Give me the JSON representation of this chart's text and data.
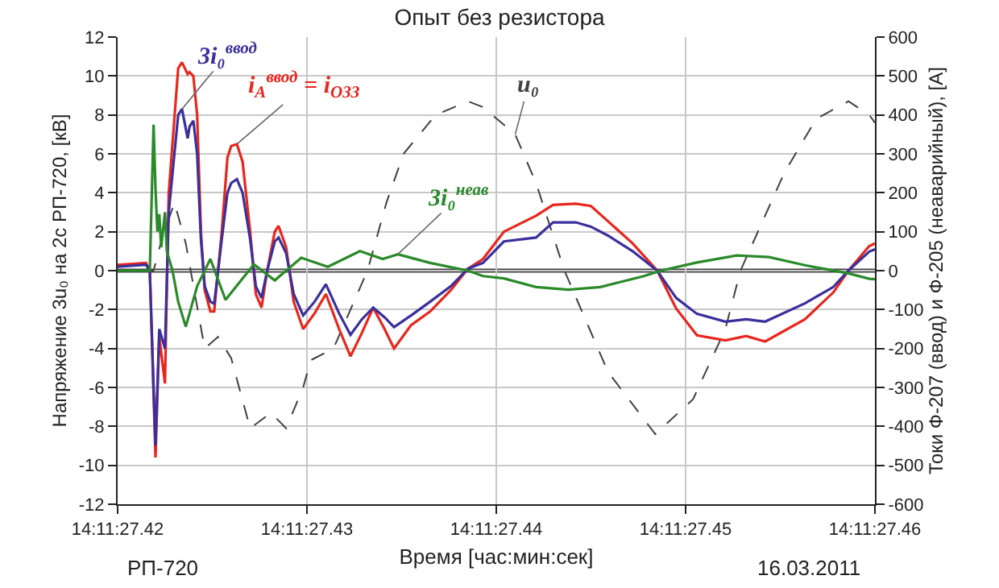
{
  "chart_data": {
    "type": "line",
    "title": "Опыт без резистора",
    "xlabel": "Время [час:мин:сек]",
    "ylabel": "Напряжение 3u₀ на 2с РП-720, [кВ]",
    "y2label": "Токи Ф-207 (ввод) и Ф-205 (неаварийный), [А]",
    "annotations": [
      "РП-720",
      "16.03.2011"
    ],
    "x": [
      "2011-03-16T14:11:27.42",
      "2011-03-16T14:11:27.4215",
      "2011-03-16T14:11:27.4217",
      "2011-03-16T14:11:27.422",
      "2011-03-16T14:11:27.4222",
      "2011-03-16T14:11:27.4225",
      "2011-03-16T14:11:27.4227",
      "2011-03-16T14:11:27.4232",
      "2011-03-16T14:11:27.4234",
      "2011-03-16T14:11:27.4237",
      "2011-03-16T14:11:27.4238",
      "2011-03-16T14:11:27.424",
      "2011-03-16T14:11:27.4242",
      "2011-03-16T14:11:27.4244",
      "2011-03-16T14:11:27.4246",
      "2011-03-16T14:11:27.4249",
      "2011-03-16T14:11:27.4251",
      "2011-03-16T14:11:27.4255",
      "2011-03-16T14:11:27.4258",
      "2011-03-16T14:11:27.426",
      "2011-03-16T14:11:27.4263",
      "2011-03-16T14:11:27.4266",
      "2011-03-16T14:11:27.427",
      "2011-03-16T14:11:27.4273",
      "2011-03-16T14:11:27.4276",
      "2011-03-16T14:11:27.4279",
      "2011-03-16T14:11:27.4283",
      "2011-03-16T14:11:27.4285",
      "2011-03-16T14:11:27.4289",
      "2011-03-16T14:11:27.4293",
      "2011-03-16T14:11:27.4298",
      "2011-03-16T14:11:27.4304",
      "2011-03-16T14:11:27.431",
      "2011-03-16T14:11:27.4317",
      "2011-03-16T14:11:27.4323",
      "2011-03-16T14:11:27.4329",
      "2011-03-16T14:11:27.4335",
      "2011-03-16T14:11:27.4341",
      "2011-03-16T14:11:27.4346",
      "2011-03-16T14:11:27.4355",
      "2011-03-16T14:11:27.4365",
      "2011-03-16T14:11:27.4376",
      "2011-03-16T14:11:27.4385",
      "2011-03-16T14:11:27.4393",
      "2011-03-16T14:11:27.4404",
      "2011-03-16T14:11:27.4421",
      "2011-03-16T14:11:27.443",
      "2011-03-16T14:11:27.4442",
      "2011-03-16T14:11:27.445",
      "2011-03-16T14:11:27.4459",
      "2011-03-16T14:11:27.4472",
      "2011-03-16T14:11:27.4485",
      "2011-03-16T14:11:27.4495",
      "2011-03-16T14:11:27.4506",
      "2011-03-16T14:11:27.4521",
      "2011-03-16T14:11:27.4532",
      "2011-03-16T14:11:27.4542",
      "2011-03-16T14:11:27.4563",
      "2011-03-16T14:11:27.4578",
      "2011-03-16T14:11:27.4586",
      "2011-03-16T14:11:27.4597",
      "2011-03-16T14:11:27.46"
    ],
    "series": [
      {
        "name": "i$_{A}$$^{ввод}$ = i$_{ОЗЗ}$",
        "color": "#e8261c",
        "axis": "y2",
        "values": [
          15,
          20,
          0,
          -480,
          -170,
          -290,
          200,
          520,
          535,
          505,
          510,
          500,
          400,
          100,
          -50,
          -105,
          -105,
          100,
          290,
          320,
          325,
          280,
          100,
          -60,
          -95,
          0,
          100,
          115,
          60,
          -80,
          -150,
          -110,
          -60,
          -150,
          -220,
          -160,
          -95,
          -150,
          -200,
          -140,
          -105,
          -50,
          5,
          30,
          100,
          141,
          169,
          172,
          166,
          127,
          70,
          0,
          -97,
          -166,
          -179,
          -168,
          -182,
          -125,
          -56,
          0,
          63,
          70
        ]
      },
      {
        "name": "3i₀$^{ввод}$",
        "color": "#3a2f9c",
        "axis": "y2",
        "values": [
          10,
          15,
          0,
          -450,
          -150,
          -200,
          150,
          400,
          415,
          340,
          370,
          385,
          300,
          80,
          -40,
          -80,
          -85,
          80,
          200,
          225,
          235,
          200,
          80,
          -40,
          -70,
          0,
          75,
          85,
          45,
          -60,
          -115,
          -80,
          -35,
          -110,
          -165,
          -125,
          -95,
          -120,
          -145,
          -115,
          -80,
          -40,
          5,
          20,
          75,
          85,
          124,
          124,
          113,
          90,
          50,
          0,
          -70,
          -111,
          -131,
          -125,
          -131,
          -84,
          -42,
          0,
          49,
          55
        ]
      },
      {
        "name": "3i₀$^{неав}$",
        "color": "#2a8a2a",
        "axis": "y2",
        "x": [
          "2011-03-16T14:11:27.42",
          "2011-03-16T14:11:27.4217",
          "2011-03-16T14:11:27.4219",
          "2011-03-16T14:11:27.422",
          "2011-03-16T14:11:27.4221",
          "2011-03-16T14:11:27.4222",
          "2011-03-16T14:11:27.4223",
          "2011-03-16T14:11:27.4225",
          "2011-03-16T14:11:27.4226",
          "2011-03-16T14:11:27.4229",
          "2011-03-16T14:11:27.4232",
          "2011-03-16T14:11:27.4236",
          "2011-03-16T14:11:27.4242",
          "2011-03-16T14:11:27.4249",
          "2011-03-16T14:11:27.4257",
          "2011-03-16T14:11:27.4266",
          "2011-03-16T14:11:27.4272",
          "2011-03-16T14:11:27.4283",
          "2011-03-16T14:11:27.4297",
          "2011-03-16T14:11:27.4311",
          "2011-03-16T14:11:27.4328",
          "2011-03-16T14:11:27.434",
          "2011-03-16T14:11:27.4348",
          "2011-03-16T14:11:27.4365",
          "2011-03-16T14:11:27.4385",
          "2011-03-16T14:11:27.4393",
          "2011-03-16T14:11:27.4404",
          "2011-03-16T14:11:27.4421",
          "2011-03-16T14:11:27.4438",
          "2011-03-16T14:11:27.4455",
          "2011-03-16T14:11:27.4478",
          "2011-03-16T14:11:27.4487",
          "2011-03-16T14:11:27.4506",
          "2011-03-16T14:11:27.4527",
          "2011-03-16T14:11:27.4544",
          "2011-03-16T14:11:27.4563",
          "2011-03-16T14:11:27.4586",
          "2011-03-16T14:11:27.4597",
          "2011-03-16T14:11:27.46"
        ],
        "values": [
          0,
          0,
          375,
          210,
          100,
          145,
          60,
          150,
          50,
          0,
          -80,
          -144,
          -40,
          30,
          -75,
          -20,
          16,
          -25,
          33,
          10,
          50,
          30,
          42,
          20,
          0,
          -14,
          -20,
          -42,
          -49,
          -42,
          -14,
          0,
          21,
          39,
          35,
          14,
          -7,
          -21,
          -22
        ]
      },
      {
        "name": "u₀",
        "color": "#404040",
        "axis": "y",
        "line_style": "dashed",
        "x": [
          "2011-03-16T14:11:27.42",
          "2011-03-16T14:11:27.4219",
          "2011-03-16T14:11:27.4223",
          "2011-03-16T14:11:27.423",
          "2011-03-16T14:11:27.4236",
          "2011-03-16T14:11:27.4246",
          "2011-03-16T14:11:27.4253",
          "2011-03-16T14:11:27.426",
          "2011-03-16T14:11:27.427",
          "2011-03-16T14:11:27.4281",
          "2011-03-16T14:11:27.4289",
          "2011-03-16T14:11:27.4298",
          "2011-03-16T14:11:27.4302",
          "2011-03-16T14:11:27.4314",
          "2011-03-16T14:11:27.4323",
          "2011-03-16T14:11:27.4332",
          "2011-03-16T14:11:27.4342",
          "2011-03-16T14:11:27.4351",
          "2011-03-16T14:11:27.4368",
          "2011-03-16T14:11:27.4385",
          "2011-03-16T14:11:27.4393",
          "2011-03-16T14:11:27.441",
          "2011-03-16T14:11:27.4421",
          "2011-03-16T14:11:27.4436",
          "2011-03-16T14:11:27.4459",
          "2011-03-16T14:11:27.4484",
          "2011-03-16T14:11:27.4504",
          "2011-03-16T14:11:27.4521",
          "2011-03-16T14:11:27.4529",
          "2011-03-16T14:11:27.4552",
          "2011-03-16T14:11:27.4569",
          "2011-03-16T14:11:27.4586",
          "2011-03-16T14:11:27.4597",
          "2011-03-16T14:11:27.46"
        ],
        "values": [
          0,
          0,
          1.5,
          3.5,
          1.4,
          -4,
          -3.4,
          -4.5,
          -8.1,
          -7.3,
          -8.1,
          -6,
          -4.6,
          -4,
          -2,
          0,
          3.5,
          6,
          8,
          8.7,
          8.4,
          7,
          4.5,
          0,
          -5.2,
          -8.4,
          -6.6,
          -3,
          0,
          5,
          7.8,
          8.7,
          8,
          7.6
        ]
      }
    ],
    "xlim": [
      "2011-03-16T14:11:27.42",
      "2011-03-16T14:11:27.46"
    ],
    "xticks": [
      {
        "value": "2011-03-16T14:11:27.42",
        "label": "14:11:27.42"
      },
      {
        "value": "2011-03-16T14:11:27.43",
        "label": "14:11:27.43"
      },
      {
        "value": "2011-03-16T14:11:27.44",
        "label": "14:11:27.44"
      },
      {
        "value": "2011-03-16T14:11:27.45",
        "label": "14:11:27.45"
      },
      {
        "value": "2011-03-16T14:11:27.46",
        "label": "14:11:27.46"
      }
    ],
    "ylim": [
      -12,
      12
    ],
    "yticks": [
      -12,
      -10,
      -8,
      -6,
      -4,
      -2,
      0,
      2,
      4,
      6,
      8,
      10,
      12
    ],
    "y2lim": [
      -600,
      600
    ],
    "y2ticks": [
      -600,
      -500,
      -400,
      -300,
      -200,
      -100,
      0,
      100,
      200,
      300,
      400,
      500,
      600
    ],
    "ref_lines": [
      {
        "axis": "y",
        "value": 0,
        "color": "#404040"
      }
    ],
    "grid": true,
    "legend": false,
    "marker": "none",
    "line_style": "solid"
  }
}
